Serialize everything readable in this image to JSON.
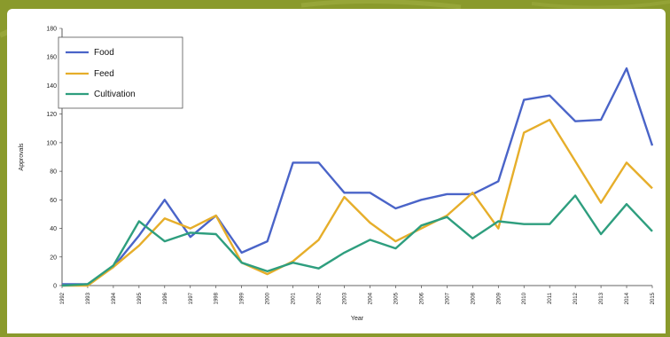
{
  "colors": {
    "background": "#8a9a2c",
    "panel": "#ffffff",
    "food": "#4a64c8",
    "feed": "#e6ae2a",
    "cultivation": "#2e9e7e"
  },
  "chart_data": {
    "type": "line",
    "title": "",
    "xlabel": "Year",
    "ylabel": "Approvals",
    "ylim": [
      0,
      180
    ],
    "yticks": [
      0,
      20,
      40,
      60,
      80,
      100,
      120,
      140,
      160,
      180
    ],
    "grid": false,
    "legend_position": "top-left",
    "x": [
      "1992",
      "1993",
      "1994",
      "1995",
      "1996",
      "1997",
      "1998",
      "1999",
      "2000",
      "2001",
      "2002",
      "2003",
      "2004",
      "2005",
      "2006",
      "2007",
      "2008",
      "2009",
      "2010",
      "2011",
      "2012",
      "2013",
      "2014",
      "2015"
    ],
    "series": [
      {
        "name": "Food",
        "color": "#4a64c8",
        "values": [
          1,
          1,
          13,
          35,
          60,
          34,
          49,
          23,
          31,
          86,
          86,
          65,
          65,
          54,
          60,
          64,
          64,
          73,
          130,
          133,
          115,
          116,
          152,
          98
        ]
      },
      {
        "name": "Feed",
        "color": "#e6ae2a",
        "values": [
          0,
          0,
          13,
          28,
          47,
          40,
          49,
          16,
          8,
          17,
          32,
          62,
          44,
          31,
          40,
          49,
          65,
          40,
          107,
          116,
          87,
          58,
          86,
          68
        ]
      },
      {
        "name": "Cultivation",
        "color": "#2e9e7e",
        "values": [
          0,
          1,
          14,
          45,
          31,
          37,
          36,
          16,
          10,
          16,
          12,
          23,
          32,
          26,
          42,
          48,
          33,
          45,
          43,
          43,
          63,
          36,
          57,
          38
        ]
      }
    ]
  }
}
